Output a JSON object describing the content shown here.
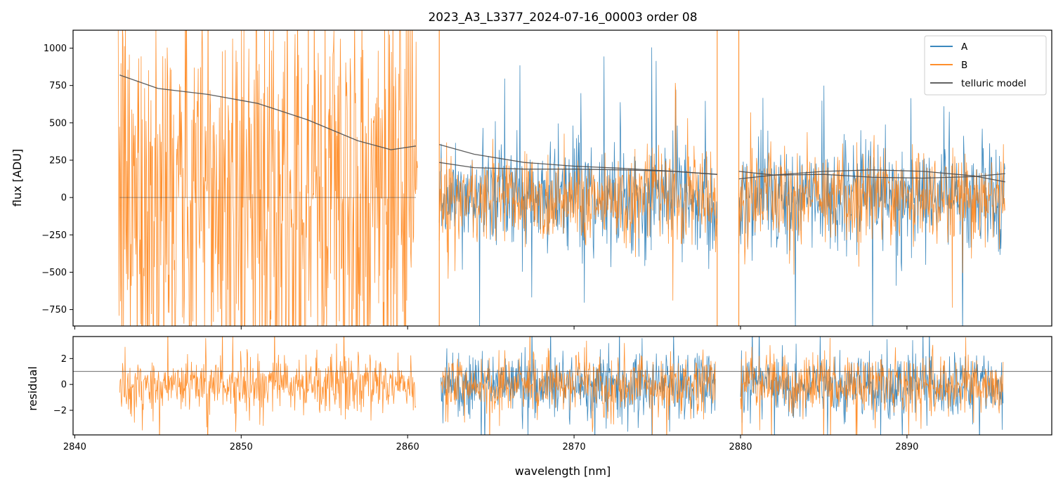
{
  "chart_data": [
    {
      "type": "line",
      "title": "2023_A3_L3377_2024-07-16_00003  order 08",
      "xlabel": "",
      "ylabel": "flux [ADU]",
      "xlim": [
        2839.9,
        2898.7
      ],
      "ylim": [
        -860,
        1120
      ],
      "yticks": [
        -750,
        -500,
        -250,
        0,
        250,
        500,
        750,
        1000
      ],
      "xticks": [
        2840,
        2850,
        2860,
        2870,
        2880,
        2890
      ],
      "grid": false,
      "legend_position": "top-right",
      "segments": [
        {
          "x_start": 2842.6,
          "x_end": 2860.6,
          "has_A": false
        },
        {
          "x_start": 2861.9,
          "x_end": 2878.6,
          "has_A": true
        },
        {
          "x_start": 2879.9,
          "x_end": 2895.9,
          "has_A": true
        }
      ],
      "series": [
        {
          "name": "A",
          "color": "#1f77b4",
          "note_values": "noisy spectrum, approx mean 0, spread +/-300 ADU"
        },
        {
          "name": "B",
          "color": "#ff7f0e",
          "note_values": "noisy spectrum, approx mean 0, spread +/-300 ADU (very large in first segment)"
        },
        {
          "name": "telluric model",
          "color": "#4d4d4d",
          "curves": [
            {
              "x": [
                2842.7,
                2845,
                2848,
                2851,
                2854,
                2857,
                2859,
                2860.5
              ],
              "y": [
                820,
                730,
                690,
                630,
                520,
                380,
                320,
                345
              ]
            },
            {
              "x": [
                2842.7,
                2860.5
              ],
              "y": [
                0,
                0
              ]
            },
            {
              "x": [
                2861.9,
                2864,
                2867,
                2870,
                2873,
                2876,
                2878.6
              ],
              "y": [
                355,
                290,
                235,
                210,
                195,
                175,
                155
              ]
            },
            {
              "x": [
                2861.9,
                2864,
                2867,
                2870,
                2873,
                2876,
                2878.6
              ],
              "y": [
                235,
                200,
                190,
                190,
                185,
                175,
                155
              ]
            },
            {
              "x": [
                2879.9,
                2882,
                2885,
                2888,
                2891,
                2894,
                2895.9
              ],
              "y": [
                175,
                150,
                155,
                135,
                130,
                140,
                160
              ]
            },
            {
              "x": [
                2879.9,
                2882,
                2885,
                2888,
                2891,
                2894,
                2895.9
              ],
              "y": [
                125,
                150,
                175,
                185,
                175,
                145,
                105
              ]
            }
          ]
        }
      ]
    },
    {
      "type": "line",
      "title": "",
      "xlabel": "wavelength [nm]",
      "ylabel": "residual",
      "xlim": [
        2839.9,
        2898.7
      ],
      "ylim": [
        -3.9,
        3.7
      ],
      "yticks": [
        -2,
        0,
        2
      ],
      "xticks": [
        2840,
        2850,
        2860,
        2870,
        2880,
        2890
      ],
      "xtick_labels": [
        "2840",
        "2850",
        "2860",
        "2870",
        "2880",
        "2890"
      ],
      "reference_line": 1,
      "segments": [
        {
          "x_start": 2842.7,
          "x_end": 2860.5,
          "has_A": false
        },
        {
          "x_start": 2862.0,
          "x_end": 2878.5,
          "has_A": true
        },
        {
          "x_start": 2880.0,
          "x_end": 2895.8,
          "has_A": true
        }
      ],
      "series": [
        {
          "name": "A",
          "color": "#1f77b4",
          "note_values": "residuals approx mean 0, spread +/-2"
        },
        {
          "name": "B",
          "color": "#ff7f0e",
          "note_values": "residuals approx mean 0, spread +/-2"
        }
      ]
    }
  ],
  "legend": {
    "entries": [
      {
        "label": "A",
        "color": "#1f77b4"
      },
      {
        "label": "B",
        "color": "#ff7f0e"
      },
      {
        "label": "telluric model",
        "color": "#4d4d4d"
      }
    ]
  }
}
